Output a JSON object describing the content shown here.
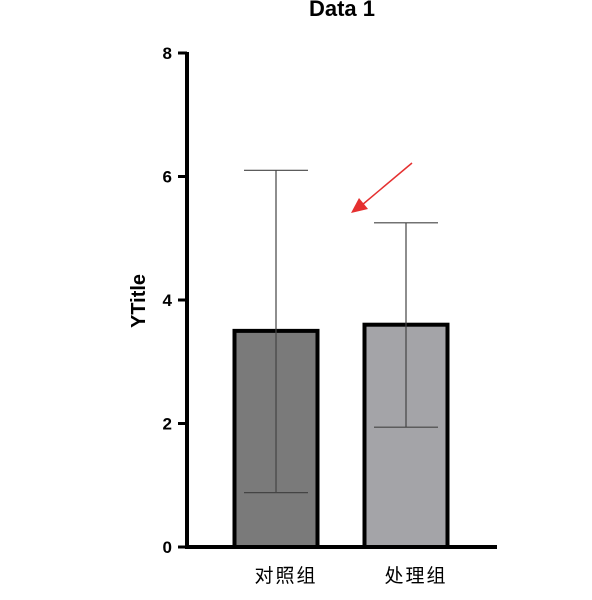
{
  "chart_data": {
    "type": "bar",
    "title": "Data 1",
    "xlabel": "",
    "ylabel": "YTitle",
    "ylim": [
      0,
      8
    ],
    "yticks": [
      "0",
      "2",
      "4",
      "6",
      "8"
    ],
    "categories": [
      "对照组",
      "处理组"
    ],
    "values": [
      3.5,
      3.6
    ],
    "error_low": [
      0.88,
      1.94
    ],
    "error_high": [
      6.1,
      5.25
    ],
    "bar_colors": [
      "#7a7a7a",
      "#a4a4a8"
    ],
    "grid": false,
    "legend": "none"
  },
  "annotation": {
    "arrow_color": "#e53030"
  }
}
